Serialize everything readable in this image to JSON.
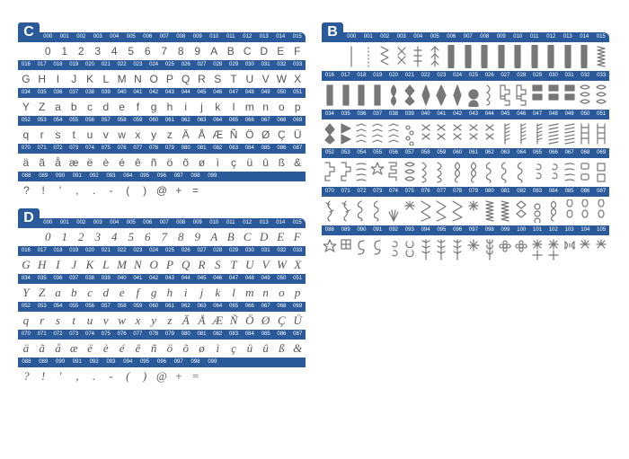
{
  "colors": {
    "header": "#2a5a9a",
    "headerText": "#ffffff",
    "charText": "#555555",
    "bg": "#ffffff",
    "stitch": "#888888"
  },
  "panels": {
    "C": {
      "badge": "C",
      "font": "sans",
      "rows": [
        {
          "nums": [
            "000",
            "001",
            "002",
            "003",
            "004",
            "005",
            "006",
            "007",
            "008",
            "009",
            "010",
            "011",
            "012",
            "013",
            "014",
            "015"
          ],
          "chars": [
            "0",
            "1",
            "2",
            "3",
            "4",
            "5",
            "6",
            "7",
            "8",
            "9",
            "A",
            "B",
            "C",
            "D",
            "E",
            "F"
          ],
          "first": true
        },
        {
          "nums": [
            "016",
            "017",
            "018",
            "019",
            "020",
            "021",
            "022",
            "023",
            "024",
            "025",
            "026",
            "027",
            "028",
            "029",
            "030",
            "031",
            "032",
            "033"
          ],
          "chars": [
            "G",
            "H",
            "I",
            "J",
            "K",
            "L",
            "M",
            "N",
            "O",
            "P",
            "Q",
            "R",
            "S",
            "T",
            "U",
            "V",
            "W",
            "X"
          ]
        },
        {
          "nums": [
            "034",
            "035",
            "036",
            "037",
            "038",
            "039",
            "040",
            "041",
            "042",
            "043",
            "044",
            "045",
            "046",
            "047",
            "048",
            "049",
            "050",
            "051"
          ],
          "chars": [
            "Y",
            "Z",
            "a",
            "b",
            "c",
            "d",
            "e",
            "f",
            "g",
            "h",
            "i",
            "j",
            "k",
            "l",
            "m",
            "n",
            "o",
            "p"
          ]
        },
        {
          "nums": [
            "052",
            "053",
            "054",
            "055",
            "056",
            "057",
            "058",
            "059",
            "060",
            "061",
            "062",
            "063",
            "064",
            "065",
            "066",
            "067",
            "068",
            "069"
          ],
          "chars": [
            "q",
            "r",
            "s",
            "t",
            "u",
            "v",
            "w",
            "x",
            "y",
            "z",
            "Ä",
            "Å",
            "Æ",
            "Ñ",
            "Ö",
            "Ø",
            "Ç",
            "Ü"
          ]
        },
        {
          "nums": [
            "070",
            "071",
            "072",
            "073",
            "074",
            "075",
            "076",
            "077",
            "078",
            "079",
            "080",
            "081",
            "082",
            "083",
            "084",
            "085",
            "086",
            "087"
          ],
          "chars": [
            "ä",
            "ã",
            "å",
            "æ",
            "ë",
            "è",
            "é",
            "ê",
            "ñ",
            "ö",
            "õ",
            "ø",
            "ì",
            "ç",
            "ü",
            "û",
            "ß",
            "&"
          ]
        },
        {
          "nums": [
            "088",
            "089",
            "090",
            "091",
            "092",
            "093",
            "094",
            "095",
            "096",
            "097",
            "098",
            "099"
          ],
          "chars": [
            "?",
            "!",
            "'",
            ",",
            ".",
            "-",
            "(",
            ")",
            "@",
            "+",
            "=",
            ""
          ],
          "short": true
        }
      ]
    },
    "D": {
      "badge": "D",
      "font": "script",
      "rows": [
        {
          "nums": [
            "000",
            "001",
            "002",
            "003",
            "004",
            "005",
            "006",
            "007",
            "008",
            "009",
            "010",
            "011",
            "012",
            "013",
            "014",
            "015"
          ],
          "chars": [
            "0",
            "1",
            "2",
            "3",
            "4",
            "5",
            "6",
            "7",
            "8",
            "9",
            "A",
            "B",
            "C",
            "D",
            "E",
            "F"
          ],
          "first": true
        },
        {
          "nums": [
            "016",
            "017",
            "018",
            "019",
            "020",
            "021",
            "022",
            "023",
            "024",
            "025",
            "026",
            "027",
            "028",
            "029",
            "030",
            "031",
            "032",
            "033"
          ],
          "chars": [
            "G",
            "H",
            "I",
            "J",
            "K",
            "L",
            "M",
            "N",
            "O",
            "P",
            "Q",
            "R",
            "S",
            "T",
            "U",
            "V",
            "W",
            "X"
          ]
        },
        {
          "nums": [
            "034",
            "035",
            "036",
            "037",
            "038",
            "039",
            "040",
            "041",
            "042",
            "043",
            "044",
            "045",
            "046",
            "047",
            "048",
            "049",
            "050",
            "051"
          ],
          "chars": [
            "Y",
            "Z",
            "a",
            "b",
            "c",
            "d",
            "e",
            "f",
            "g",
            "h",
            "i",
            "j",
            "k",
            "l",
            "m",
            "n",
            "o",
            "p"
          ]
        },
        {
          "nums": [
            "052",
            "053",
            "054",
            "055",
            "056",
            "057",
            "058",
            "059",
            "060",
            "061",
            "062",
            "063",
            "064",
            "065",
            "066",
            "067",
            "068",
            "069"
          ],
          "chars": [
            "q",
            "r",
            "s",
            "t",
            "u",
            "v",
            "w",
            "x",
            "y",
            "z",
            "Ä",
            "Å",
            "Æ",
            "Ñ",
            "Ö",
            "Ø",
            "Ç",
            "Ü"
          ]
        },
        {
          "nums": [
            "070",
            "071",
            "072",
            "073",
            "074",
            "075",
            "076",
            "077",
            "078",
            "079",
            "080",
            "081",
            "082",
            "083",
            "084",
            "085",
            "086",
            "087"
          ],
          "chars": [
            "ä",
            "ã",
            "å",
            "æ",
            "ë",
            "è",
            "é",
            "ê",
            "ñ",
            "ö",
            "õ",
            "ø",
            "ì",
            "ç",
            "ü",
            "û",
            "ß",
            "&"
          ]
        },
        {
          "nums": [
            "088",
            "089",
            "090",
            "091",
            "092",
            "093",
            "094",
            "095",
            "096",
            "097",
            "098",
            "099"
          ],
          "chars": [
            "?",
            "!",
            "'",
            ",",
            ".",
            "-",
            "(",
            ")",
            "@",
            "+",
            "=",
            ""
          ],
          "short": true
        }
      ]
    },
    "B": {
      "badge": "B",
      "rows": [
        {
          "nums": [
            "000",
            "001",
            "002",
            "003",
            "004",
            "005",
            "006",
            "007",
            "008",
            "009",
            "010",
            "011",
            "012",
            "013",
            "014",
            "015"
          ],
          "stitches": [
            "dash",
            "dot",
            "zig1",
            "cross",
            "cross2",
            "arrow",
            "oval",
            "oval",
            "oval",
            "oval",
            "oval",
            "oval",
            "oval",
            "oval",
            "oval",
            "zig2"
          ],
          "first": true
        },
        {
          "nums": [
            "016",
            "017",
            "018",
            "019",
            "020",
            "021",
            "022",
            "023",
            "024",
            "025",
            "026",
            "027",
            "028",
            "029",
            "030",
            "031",
            "032",
            "033"
          ],
          "stitches": [
            "bar",
            "bar",
            "bar",
            "bar",
            "leaf",
            "dia",
            "dia2",
            "dia3",
            "dia2",
            "circ",
            "squig",
            "check",
            "check",
            "block",
            "block",
            "block",
            "wave",
            "wave"
          ]
        },
        {
          "nums": [
            "034",
            "035",
            "036",
            "037",
            "038",
            "039",
            "040",
            "041",
            "042",
            "043",
            "044",
            "045",
            "046",
            "047",
            "048",
            "049",
            "050",
            "051"
          ],
          "stitches": [
            "dia",
            "tri",
            "chev",
            "chev",
            "chev",
            "dot2",
            "xst",
            "xst",
            "xst",
            "xst",
            "xst",
            "comb",
            "comb",
            "comb",
            "hatch",
            "hatch",
            "ladd",
            "ladd"
          ]
        },
        {
          "nums": [
            "052",
            "053",
            "054",
            "055",
            "056",
            "057",
            "058",
            "059",
            "060",
            "061",
            "062",
            "063",
            "064",
            "065",
            "066",
            "067",
            "068",
            "069"
          ],
          "stitches": [
            "step",
            "step",
            "wavy",
            "star",
            "greek",
            "wave",
            "wave2",
            "wave2",
            "loop",
            "loop",
            "curl",
            "curl",
            "curl",
            "spir",
            "spir",
            "wavy",
            "cloud",
            "sq"
          ]
        },
        {
          "nums": [
            "070",
            "071",
            "072",
            "073",
            "074",
            "075",
            "076",
            "077",
            "078",
            "079",
            "080",
            "081",
            "082",
            "083",
            "084",
            "085",
            "086",
            "087"
          ],
          "stitches": [
            "vine",
            "vine",
            "curl",
            "curl",
            "fan",
            "burst",
            "zig3",
            "zig3",
            "zig3",
            "star2",
            "zig2",
            "zig2",
            "dia4",
            "circ2",
            "loop",
            "link",
            "link",
            "link"
          ]
        },
        {
          "nums": [
            "088",
            "089",
            "090",
            "091",
            "092",
            "093",
            "094",
            "095",
            "096",
            "097",
            "098",
            "099",
            "100",
            "101",
            "102",
            "103",
            "104",
            "105"
          ],
          "stitches": [
            "star",
            "grid",
            "ess",
            "ess",
            "spir",
            "loop2",
            "fern",
            "fern",
            "fern",
            "snow",
            "wheat",
            "flwr",
            "flwr",
            "ast",
            "ast",
            "bow",
            "burst",
            "burst"
          ]
        }
      ]
    }
  }
}
